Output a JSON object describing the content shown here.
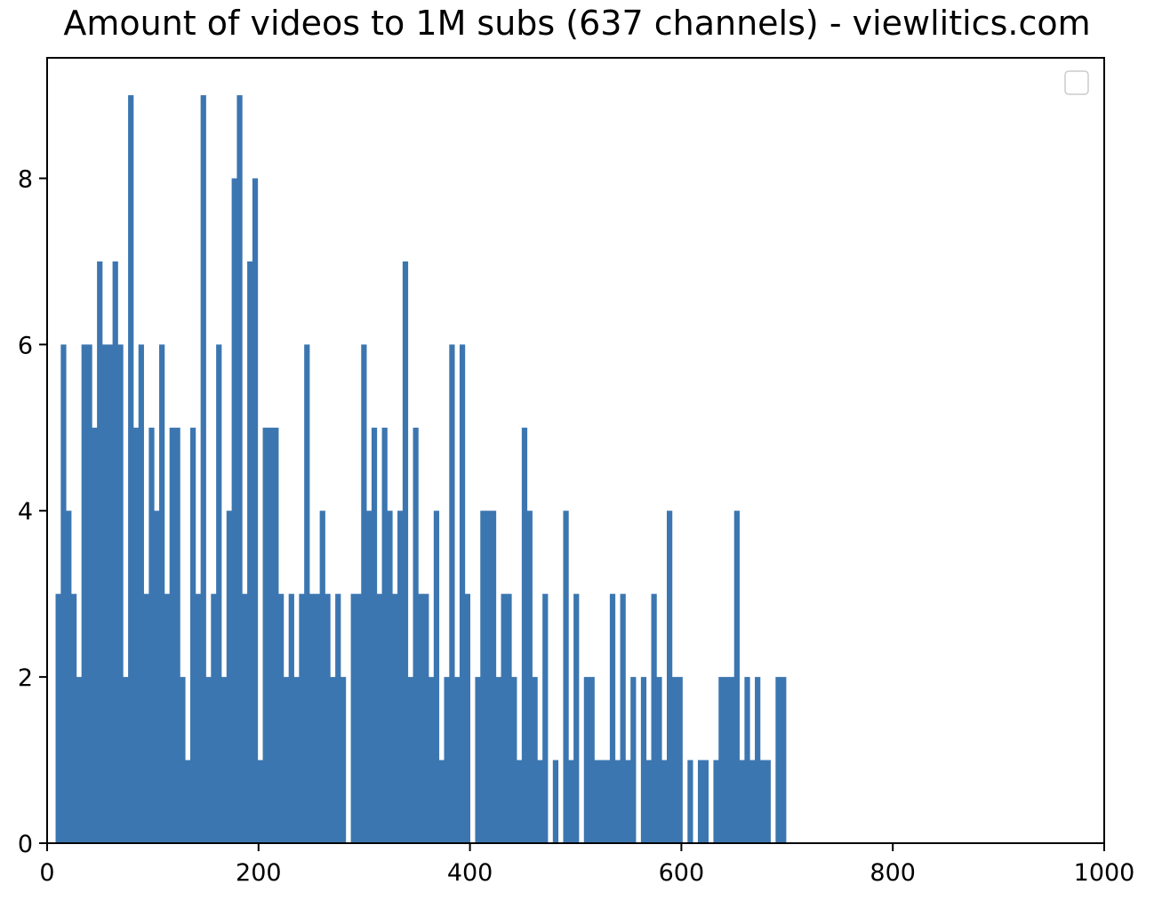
{
  "chart_data": {
    "type": "bar",
    "title": "Amount of videos to 1M subs (637 channels) - viewlitics.com",
    "xlabel": "",
    "ylabel": "",
    "xlim": [
      0,
      1000
    ],
    "ylim": [
      0,
      9.45
    ],
    "x_ticks": [
      0,
      200,
      400,
      600,
      800,
      1000
    ],
    "y_ticks": [
      0,
      2,
      4,
      6,
      8
    ],
    "bin_start": 8,
    "bin_width": 4.9,
    "values": [
      3,
      6,
      4,
      3,
      2,
      6,
      6,
      5,
      7,
      6,
      6,
      7,
      6,
      2,
      9,
      5,
      6,
      3,
      5,
      4,
      6,
      3,
      5,
      5,
      2,
      1,
      5,
      3,
      9,
      2,
      3,
      6,
      2,
      4,
      8,
      9,
      3,
      7,
      8,
      1,
      5,
      5,
      5,
      3,
      2,
      3,
      2,
      3,
      6,
      3,
      3,
      4,
      3,
      2,
      3,
      2,
      0,
      3,
      3,
      6,
      4,
      5,
      3,
      5,
      4,
      3,
      4,
      7,
      2,
      5,
      3,
      3,
      2,
      4,
      1,
      2,
      6,
      2,
      6,
      3,
      0,
      2,
      4,
      4,
      4,
      2,
      3,
      3,
      2,
      1,
      5,
      4,
      2,
      1,
      3,
      0,
      1,
      0,
      4,
      1,
      3,
      0,
      2,
      2,
      1,
      1,
      1,
      3,
      1,
      3,
      1,
      2,
      0,
      2,
      1,
      3,
      2,
      1,
      4,
      2,
      2,
      0,
      1,
      0,
      1,
      1,
      0,
      1,
      2,
      2,
      2,
      4,
      1,
      2,
      1,
      2,
      1,
      1,
      0,
      2,
      2
    ],
    "bar_color": "#3c76b0",
    "legend": "top-right (empty)",
    "grid": false
  }
}
